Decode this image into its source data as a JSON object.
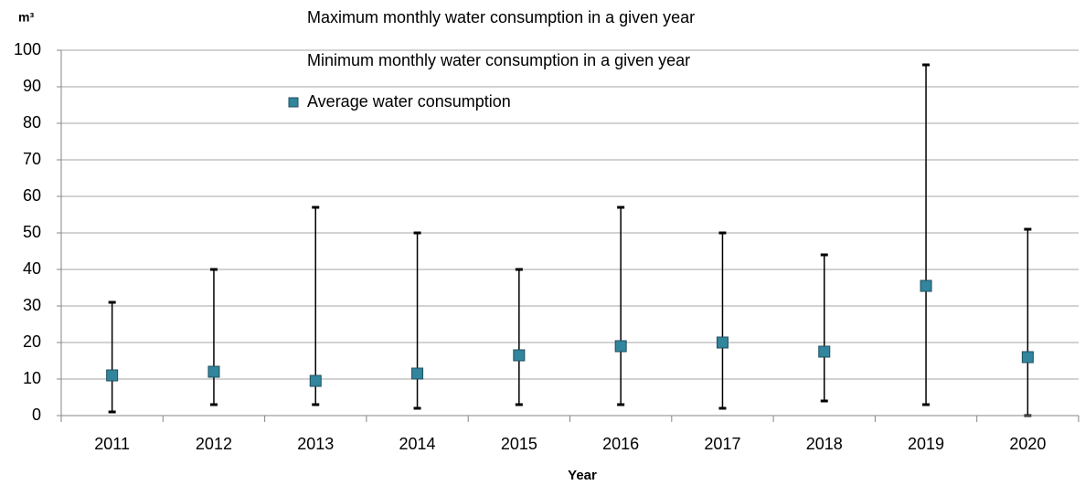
{
  "chart_data": {
    "type": "range",
    "y_label": "m³",
    "x_label": "Year",
    "categories": [
      "2011",
      "2012",
      "2013",
      "2014",
      "2015",
      "2016",
      "2017",
      "2018",
      "2019",
      "2020"
    ],
    "series": [
      {
        "name": "Maximum monthly water consumption in a given year",
        "color": "#000000",
        "values": [
          31,
          40,
          57,
          50,
          40,
          57,
          50,
          44,
          96,
          51
        ]
      },
      {
        "name": "Minimum monthly water consumption in a given year",
        "color": "#000000",
        "values": [
          1,
          3,
          3,
          2,
          3,
          3,
          2,
          4,
          3,
          0
        ]
      },
      {
        "name": "Average water consumption",
        "color": "#31859c",
        "values": [
          11,
          12,
          9.5,
          11.5,
          16.5,
          19,
          20,
          17.5,
          35.5,
          16
        ]
      }
    ],
    "ylim": [
      0,
      100
    ],
    "yticks": [
      0,
      10,
      20,
      30,
      40,
      50,
      60,
      70,
      80,
      90,
      100
    ],
    "grid": true
  }
}
